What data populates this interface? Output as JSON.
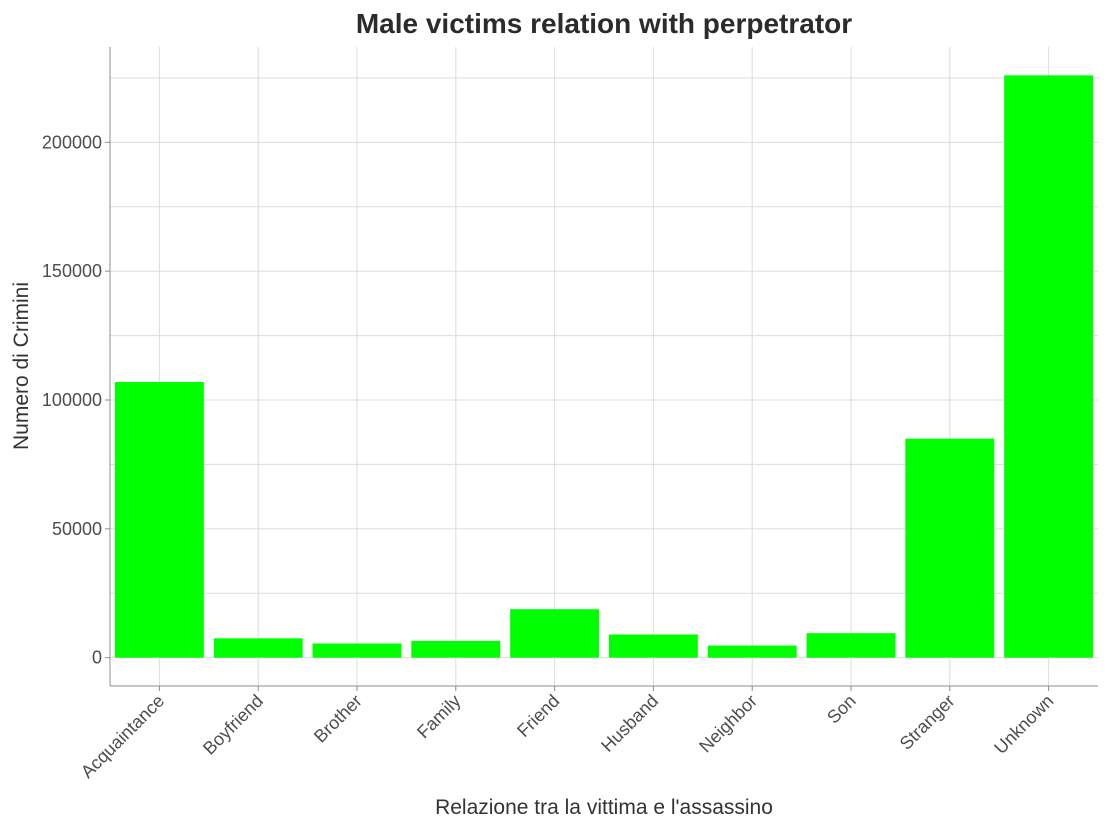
{
  "chart_data": {
    "type": "bar",
    "title": "Male victims relation with perpetrator",
    "xlabel": "Relazione tra la vittima e l'assassino",
    "ylabel": "Numero di Crimini",
    "categories": [
      "Acquaintance",
      "Boyfriend",
      "Brother",
      "Family",
      "Friend",
      "Husband",
      "Neighbor",
      "Son",
      "Stranger",
      "Unknown"
    ],
    "values": [
      107000,
      7500,
      5500,
      6500,
      18800,
      9000,
      4700,
      9500,
      85000,
      226000
    ],
    "yticks": [
      0,
      50000,
      100000,
      150000,
      200000
    ],
    "ytick_labels": [
      "0",
      "50000",
      "100000",
      "150000",
      "200000"
    ],
    "ylim": [
      -11000,
      237000
    ],
    "bar_color": "#00ff00",
    "grid": true,
    "legend": "none"
  }
}
